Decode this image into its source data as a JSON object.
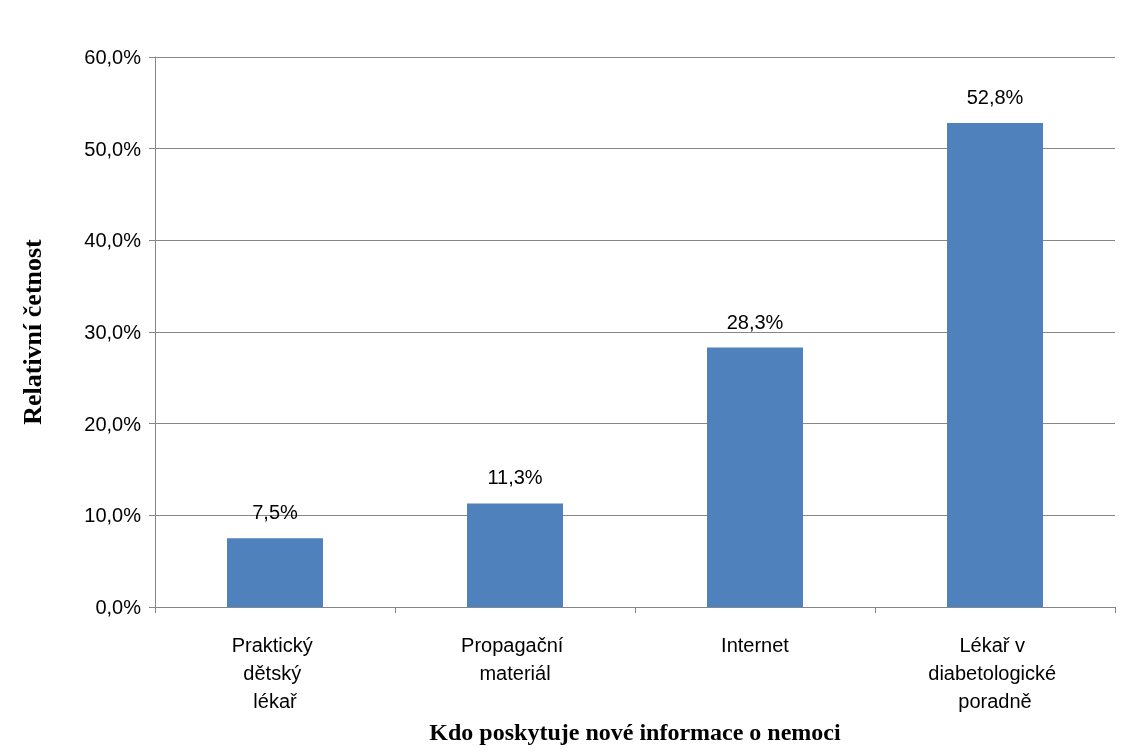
{
  "chart_data": {
    "type": "bar",
    "xlabel": "Kdo poskytuje nové informace o nemoci",
    "ylabel": "Relativní četnost",
    "categories": [
      "Praktický dětský lékař",
      "Propagační materiál",
      "Internet",
      "Lékař v diabetologické poradně"
    ],
    "values": [
      7.5,
      11.3,
      28.3,
      52.8
    ],
    "value_labels": [
      "7,5%",
      "11,3%",
      "28,3%",
      "52,8%"
    ],
    "color": "#4f81bd",
    "ylim": [
      0,
      60
    ],
    "yticks": [
      {
        "value": 0,
        "label": "0,0%"
      },
      {
        "value": 10,
        "label": "10,0%"
      },
      {
        "value": 20,
        "label": "20,0%"
      },
      {
        "value": 30,
        "label": "30,0%"
      },
      {
        "value": 40,
        "label": "40,0%"
      },
      {
        "value": 50,
        "label": "50,0%"
      },
      {
        "value": 60,
        "label": "60,0%"
      }
    ],
    "grid": "y"
  }
}
